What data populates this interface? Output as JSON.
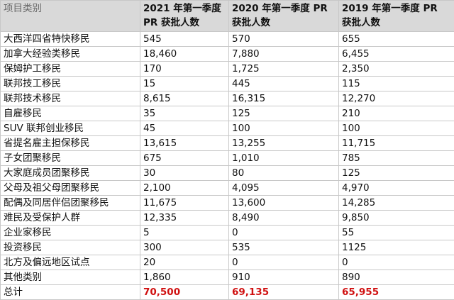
{
  "table": {
    "header": [
      "项目类别",
      [
        "2021 年第一季度",
        "PR 获批人数"
      ],
      [
        "2020 年第一季度 PR",
        "获批人数"
      ],
      [
        "2019 年第一季度 PR",
        "获批人数"
      ]
    ],
    "rows": [
      [
        "大西洋四省特快移民",
        "545",
        "570",
        "655"
      ],
      [
        "加拿大经验类移民",
        "18,460",
        "7,880",
        "6,455"
      ],
      [
        "保姆护工移民",
        "170",
        "1,725",
        "2,350"
      ],
      [
        "联邦技工移民",
        "15",
        "445",
        "115"
      ],
      [
        "联邦技术移民",
        "8,615",
        "16,315",
        "12,270"
      ],
      [
        "自雇移民",
        "35",
        "125",
        "210"
      ],
      [
        "SUV 联邦创业移民",
        "45",
        "100",
        "100"
      ],
      [
        "省提名雇主担保移民",
        "13,615",
        "13,255",
        "11,715"
      ],
      [
        "子女团聚移民",
        "675",
        "1,010",
        "785"
      ],
      [
        "大家庭成员团聚移民",
        "30",
        "80",
        "125"
      ],
      [
        "父母及祖父母团聚移民",
        "2,100",
        "4,095",
        "4,970"
      ],
      [
        "配偶及同居伴侣团聚移民",
        "11,675",
        "13,600",
        "14,285"
      ],
      [
        "难民及受保护人群",
        "12,335",
        "8,490",
        "9,850"
      ],
      [
        "企业家移民",
        "5",
        "0",
        "55"
      ],
      [
        "投资移民",
        "300",
        "535",
        "1125"
      ],
      [
        "北方及偏远地区试点",
        "20",
        "0",
        "0"
      ],
      [
        "其他类别",
        "1,860",
        "910",
        "890"
      ],
      [
        "总计",
        "70,500",
        "69,135",
        "65,955"
      ]
    ]
  }
}
